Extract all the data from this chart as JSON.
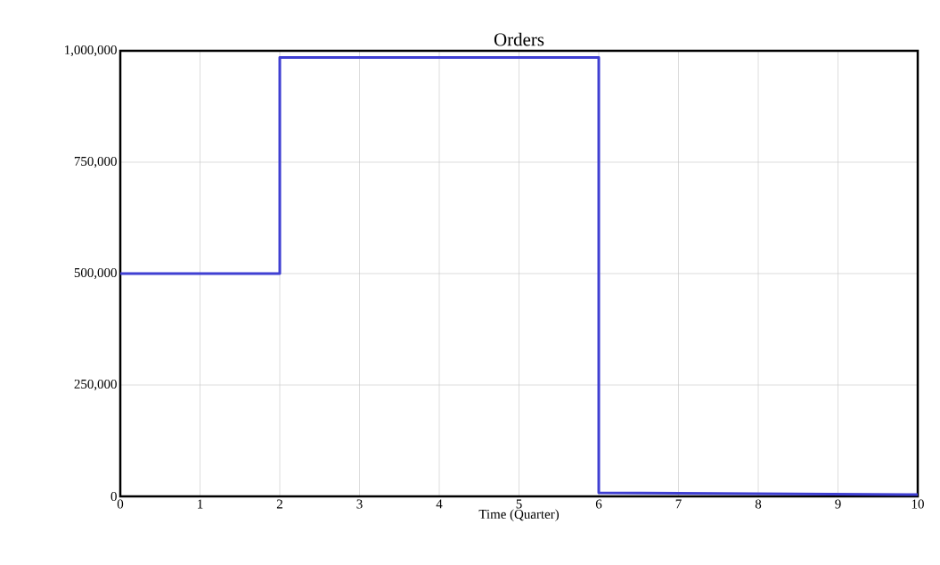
{
  "chart_data": {
    "type": "line",
    "title": "Orders",
    "xlabel": "Time (Quarter)",
    "x": [
      0,
      2,
      2,
      6,
      6,
      10
    ],
    "series": [
      {
        "color": "#3f3fd2",
        "values": [
          500000,
          500000,
          985000,
          985000,
          8000,
          4000
        ]
      }
    ],
    "xlim": [
      0,
      10
    ],
    "xticks": [
      0,
      1,
      2,
      3,
      4,
      5,
      6,
      7,
      8,
      9,
      10
    ],
    "ylim": [
      0,
      1000000
    ],
    "yticks": [
      {
        "value": 0,
        "label": "0"
      },
      {
        "value": 250000,
        "label": "250,000"
      },
      {
        "value": 500000,
        "label": "500,000"
      },
      {
        "value": 750000,
        "label": "750,000"
      },
      {
        "value": 1000000,
        "label": "1,000,000"
      }
    ],
    "grid": true,
    "marker": "none",
    "line_style": "solid"
  }
}
